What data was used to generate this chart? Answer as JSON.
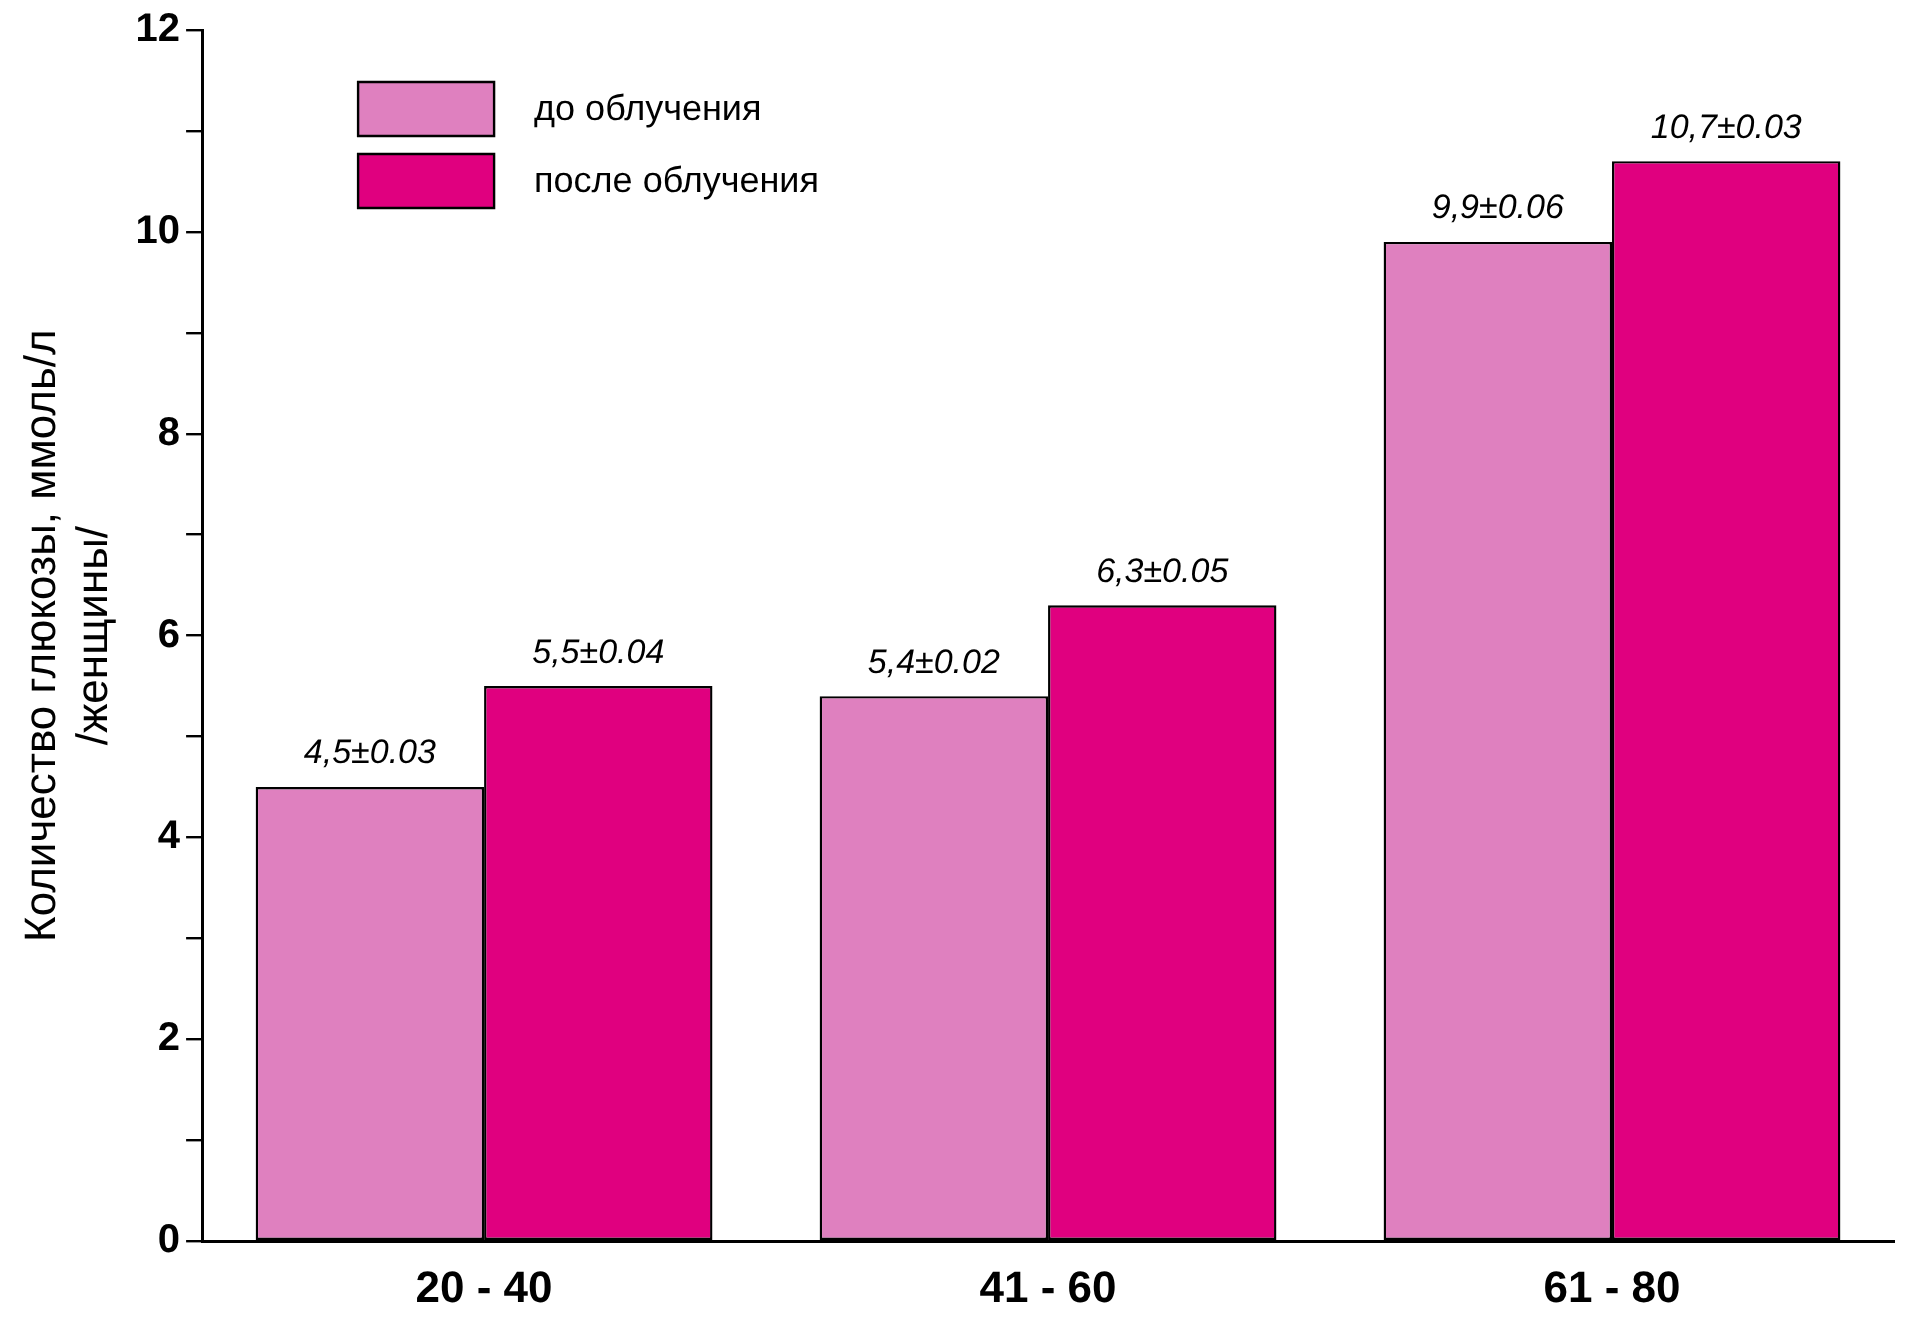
{
  "chart_data": {
    "type": "bar",
    "ylabel": "Количество глюкозы, ммоль/л\n/женщины/",
    "categories": [
      "20 - 40",
      "41 - 60",
      "61 - 80"
    ],
    "series": [
      {
        "name": "до облучения",
        "color": "#df80bf",
        "values": [
          4.5,
          5.4,
          9.9
        ],
        "value_labels": [
          "4,5±0.03",
          "5,4±0.02",
          "9,9±0.06"
        ]
      },
      {
        "name": "после облучения",
        "color": "#e0007f",
        "values": [
          5.5,
          6.3,
          10.7
        ],
        "value_labels": [
          "5,5±0.04",
          "6,3±0.05",
          "10,7±0.03"
        ]
      }
    ],
    "ylim": [
      0,
      12
    ],
    "yticks": [
      0,
      {
        "value": 1,
        "label": null
      },
      2,
      {
        "value": 3,
        "label": null
      },
      4,
      {
        "value": 5,
        "label": null
      },
      6,
      {
        "value": 7,
        "label": null
      },
      8,
      {
        "value": 9,
        "label": null
      },
      10,
      {
        "value": 11,
        "label": null
      },
      12
    ],
    "grid": false,
    "legend": "top left"
  }
}
